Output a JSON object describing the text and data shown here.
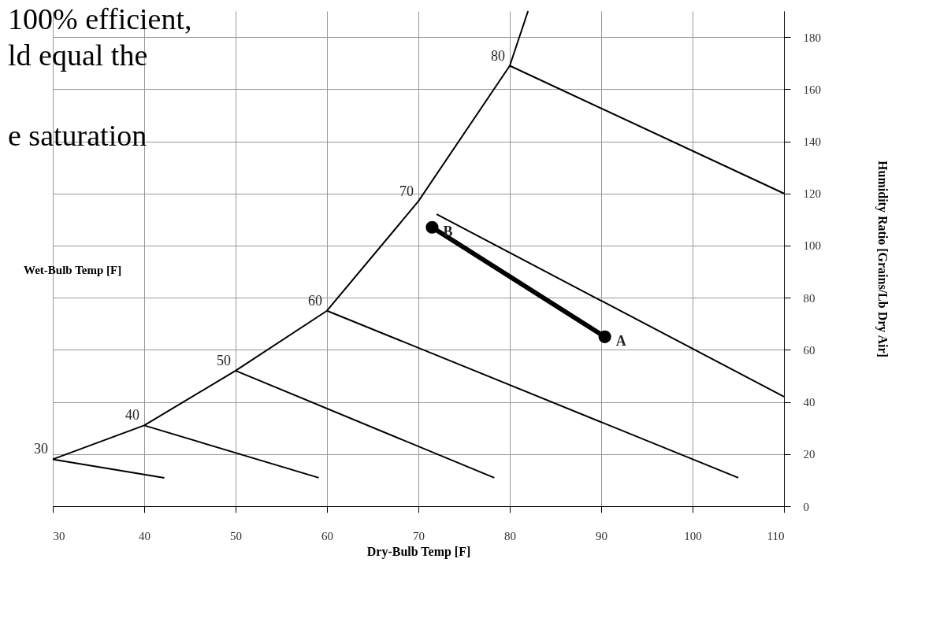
{
  "chart_data": {
    "type": "line",
    "xlabel": "Dry-Bulb Temp [F]",
    "ylabel": "Humidity Ratio [Grains/Lb Dry Air]",
    "xlim": [
      30,
      110
    ],
    "xticks": [
      30,
      40,
      50,
      60,
      70,
      80,
      90,
      100,
      110
    ],
    "ylim": [
      0,
      190
    ],
    "yticks": [
      0,
      20,
      40,
      60,
      80,
      100,
      120,
      140,
      160,
      180
    ],
    "grid": true,
    "series": [
      {
        "color": "#000000",
        "x": [
          30,
          40,
          50,
          60,
          70,
          80,
          82
        ],
        "values": [
          18,
          31,
          52,
          75,
          117,
          169,
          190
        ]
      },
      {
        "color": "#000000",
        "x": [
          30,
          42.2
        ],
        "values": [
          18,
          10.9
        ]
      },
      {
        "color": "#000000",
        "x": [
          40,
          59.1
        ],
        "values": [
          31,
          10.9
        ]
      },
      {
        "color": "#000000",
        "x": [
          50,
          78.3
        ],
        "values": [
          52,
          10.9
        ]
      },
      {
        "color": "#000000",
        "x": [
          60,
          105
        ],
        "values": [
          75,
          10.9
        ]
      },
      {
        "color": "#000000",
        "x": [
          72,
          110
        ],
        "values": [
          112,
          42
        ]
      },
      {
        "color": "#000000",
        "x": [
          80,
          110
        ],
        "values": [
          169,
          120
        ]
      },
      {
        "color": "#000000",
        "marker": "circle",
        "x": [
          71.5,
          90.4
        ],
        "values": [
          107,
          65
        ]
      }
    ],
    "annotations": [
      "100% efficient,",
      "ld equal the",
      "e saturation",
      "Wet-Bulb Temp [F]",
      {
        "text": "30",
        "x": 30,
        "y": 18
      },
      {
        "text": "40",
        "x": 40,
        "y": 31
      },
      {
        "text": "50",
        "x": 50,
        "y": 52
      },
      {
        "text": "60",
        "x": 60,
        "y": 75
      },
      {
        "text": "70",
        "x": 70,
        "y": 117
      },
      {
        "text": "80",
        "x": 80,
        "y": 169
      },
      {
        "text": "B",
        "x": 71.5,
        "y": 107
      },
      {
        "text": "A",
        "x": 90.4,
        "y": 65
      }
    ]
  }
}
